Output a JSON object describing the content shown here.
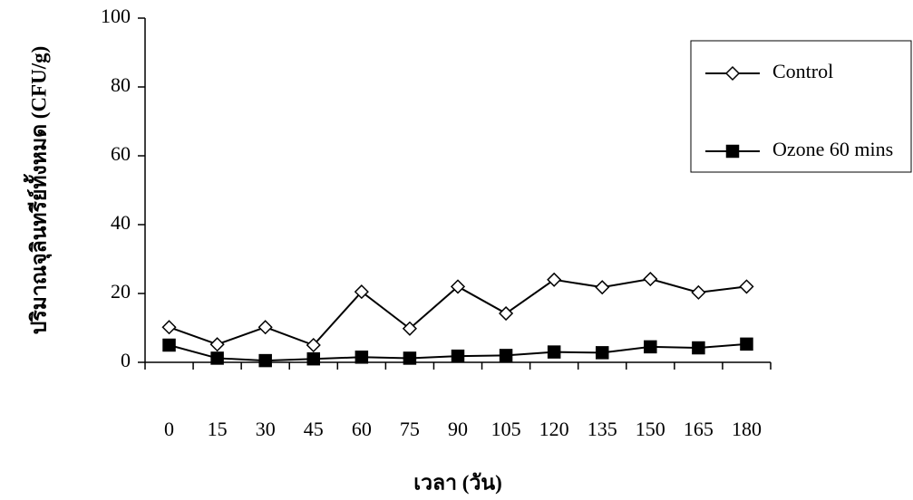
{
  "chart_data": {
    "type": "line",
    "y_label": "ปริมาณจุลินทรีย์ทั้งหมด (CFU/g)",
    "x_label": "เวลา (วัน)",
    "categories": [
      "0",
      "15",
      "30",
      "45",
      "60",
      "75",
      "90",
      "105",
      "120",
      "135",
      "150",
      "165",
      "180"
    ],
    "series": [
      {
        "name": "Control",
        "color": "#000000",
        "marker": "diamond",
        "marker_fill": "#ffffff",
        "values": [
          10.2,
          5.2,
          10.2,
          5,
          20.5,
          9.8,
          22,
          14.2,
          24,
          21.8,
          24.2,
          20.3,
          22
        ]
      },
      {
        "name": "Ozone 60 mins",
        "color": "#000000",
        "marker": "square",
        "marker_fill": "#000000",
        "values": [
          5,
          1.2,
          0.5,
          1,
          1.5,
          1.2,
          1.8,
          2,
          3,
          2.8,
          4.5,
          4.2,
          5.3
        ]
      }
    ],
    "ylim": [
      0,
      100
    ],
    "yticks": [
      0,
      20,
      40,
      60,
      80,
      100
    ],
    "grid": false,
    "legend": "right"
  }
}
